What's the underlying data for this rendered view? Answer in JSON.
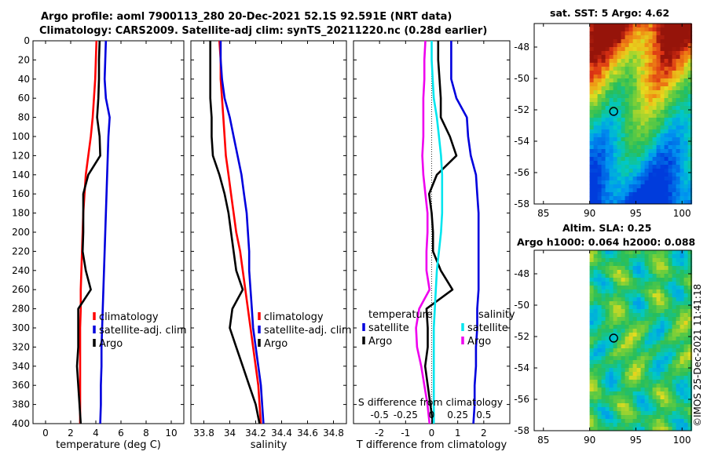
{
  "header": {
    "title_line1": "Argo profile: aoml 7900113_280 20-Dec-2021 52.1S 92.591E (NRT data)",
    "title_line2": "Climatology: CARS2009. Satellite-adj clim: synTS_20211220.nc (0.28d earlier)"
  },
  "colors": {
    "red": "#ff0000",
    "blue": "#0000dd",
    "black": "#000000",
    "cyan": "#00e5ee",
    "magenta": "#ee00ee"
  },
  "chart_data": [
    {
      "name": "temperature_profile",
      "type": "line",
      "xlabel": "temperature (deg C)",
      "xlim": [
        -1,
        11
      ],
      "xticks": [
        "0",
        "2",
        "4",
        "6",
        "8",
        "10"
      ],
      "ylim": [
        0,
        400
      ],
      "yticks": [
        "0",
        "20",
        "40",
        "60",
        "80",
        "100",
        "120",
        "140",
        "160",
        "180",
        "200",
        "220",
        "240",
        "260",
        "280",
        "300",
        "320",
        "340",
        "360",
        "380",
        "400"
      ],
      "legend": [
        "climatology",
        "satellite-adj. clim",
        "Argo"
      ],
      "series": [
        {
          "name": "climatology",
          "color": "red",
          "depth": [
            0,
            20,
            40,
            60,
            80,
            100,
            120,
            140,
            160,
            180,
            200,
            220,
            240,
            260,
            280,
            300,
            320,
            340,
            360,
            380,
            400
          ],
          "values": [
            4.05,
            4.0,
            3.95,
            3.85,
            3.75,
            3.6,
            3.4,
            3.2,
            3.1,
            3.0,
            2.95,
            2.9,
            2.85,
            2.8,
            2.8,
            2.75,
            2.75,
            2.75,
            2.75,
            2.75,
            2.75
          ]
        },
        {
          "name": "satellite-adj. clim",
          "color": "blue",
          "depth": [
            0,
            20,
            40,
            60,
            80,
            100,
            120,
            140,
            160,
            180,
            200,
            220,
            240,
            260,
            280,
            300,
            320,
            340,
            360,
            380,
            400
          ],
          "values": [
            4.8,
            4.75,
            4.7,
            4.8,
            5.1,
            5.0,
            4.95,
            4.9,
            4.85,
            4.8,
            4.75,
            4.7,
            4.65,
            4.6,
            4.55,
            4.5,
            4.45,
            4.45,
            4.4,
            4.4,
            4.35
          ]
        },
        {
          "name": "Argo",
          "color": "black",
          "depth": [
            0,
            20,
            40,
            60,
            80,
            100,
            120,
            140,
            160,
            180,
            200,
            220,
            240,
            260,
            280,
            300,
            320,
            340,
            360,
            380,
            400
          ],
          "values": [
            4.3,
            4.25,
            4.25,
            4.2,
            4.1,
            4.3,
            4.35,
            3.4,
            3.0,
            3.0,
            3.0,
            2.95,
            3.2,
            3.6,
            2.6,
            2.6,
            2.6,
            2.5,
            2.6,
            2.7,
            2.8
          ]
        }
      ]
    },
    {
      "name": "salinity_profile",
      "type": "line",
      "xlabel": "salinity",
      "xlim": [
        33.7,
        34.9
      ],
      "xticks": [
        "33.8",
        "34",
        "34.2",
        "34.4",
        "34.6",
        "34.8"
      ],
      "ylim": [
        0,
        400
      ],
      "legend": [
        "climatology",
        "satellite-adj. clim",
        "Argo"
      ],
      "series": [
        {
          "name": "climatology",
          "color": "red",
          "depth": [
            0,
            20,
            40,
            60,
            80,
            100,
            120,
            140,
            160,
            180,
            200,
            220,
            240,
            260,
            280,
            300,
            320,
            340,
            360,
            380,
            400
          ],
          "values": [
            33.92,
            33.93,
            33.93,
            33.94,
            33.95,
            33.96,
            33.97,
            33.99,
            34.01,
            34.03,
            34.05,
            34.08,
            34.1,
            34.12,
            34.14,
            34.16,
            34.18,
            34.2,
            34.22,
            34.23,
            34.24
          ]
        },
        {
          "name": "satellite-adj. clim",
          "color": "blue",
          "depth": [
            0,
            20,
            40,
            60,
            80,
            100,
            120,
            140,
            160,
            180,
            200,
            220,
            240,
            260,
            280,
            300,
            320,
            340,
            360,
            380,
            400
          ],
          "values": [
            33.93,
            33.93,
            33.94,
            33.96,
            34.0,
            34.03,
            34.06,
            34.09,
            34.11,
            34.13,
            34.14,
            34.15,
            34.15,
            34.16,
            34.17,
            34.18,
            34.2,
            34.22,
            34.24,
            34.25,
            34.26
          ]
        },
        {
          "name": "Argo",
          "color": "black",
          "depth": [
            0,
            20,
            40,
            60,
            80,
            100,
            120,
            140,
            160,
            180,
            200,
            220,
            240,
            260,
            280,
            300,
            320,
            340,
            360,
            380,
            400
          ],
          "values": [
            33.85,
            33.85,
            33.85,
            33.85,
            33.86,
            33.86,
            33.87,
            33.92,
            33.96,
            33.99,
            34.01,
            34.03,
            34.05,
            34.1,
            34.02,
            34.0,
            34.05,
            34.1,
            34.15,
            34.2,
            34.23
          ]
        }
      ]
    },
    {
      "name": "difference_profile",
      "type": "line",
      "xlabel": "T difference from climatology",
      "xlabel_top": "S difference from climatology",
      "xlim": [
        -3,
        3
      ],
      "xticks": [
        "-2",
        "-1",
        "0",
        "1",
        "2"
      ],
      "xticks_s": [
        "-0.5",
        "-0.25",
        "0",
        "0.25",
        "0.5"
      ],
      "ylim": [
        0,
        400
      ],
      "legend": {
        "temperature_header": "temperature",
        "salinity_header": "salinity",
        "temperature": [
          "satellite",
          "Argo"
        ],
        "salinity": [
          "satellite",
          "Argo"
        ]
      },
      "series": [
        {
          "name": "T satellite",
          "color": "blue",
          "depth": [
            0,
            20,
            40,
            60,
            80,
            100,
            120,
            140,
            160,
            180,
            200,
            220,
            240,
            260,
            280,
            300,
            320,
            340,
            360,
            380,
            400
          ],
          "values": [
            0.75,
            0.75,
            0.75,
            0.95,
            1.35,
            1.4,
            1.5,
            1.7,
            1.75,
            1.8,
            1.8,
            1.8,
            1.8,
            1.8,
            1.75,
            1.75,
            1.7,
            1.7,
            1.65,
            1.65,
            1.6
          ]
        },
        {
          "name": "T Argo",
          "color": "black",
          "depth": [
            0,
            20,
            40,
            60,
            80,
            100,
            120,
            140,
            160,
            180,
            200,
            220,
            240,
            260,
            280,
            300,
            320,
            340,
            360,
            380,
            400
          ],
          "values": [
            0.25,
            0.25,
            0.3,
            0.35,
            0.35,
            0.7,
            0.95,
            0.2,
            -0.1,
            0.0,
            0.05,
            0.05,
            0.35,
            0.8,
            -0.2,
            -0.15,
            -0.15,
            -0.25,
            -0.15,
            -0.05,
            0.05
          ]
        },
        {
          "name": "S satellite",
          "color": "cyan",
          "depth": [
            0,
            20,
            40,
            60,
            80,
            100,
            120,
            140,
            160,
            180,
            200,
            220,
            240,
            260,
            280,
            300,
            320,
            340,
            360,
            380,
            400
          ],
          "values": [
            0.0,
            0.0,
            0.01,
            0.02,
            0.05,
            0.07,
            0.09,
            0.1,
            0.1,
            0.1,
            0.09,
            0.07,
            0.05,
            0.04,
            0.03,
            0.02,
            0.02,
            0.02,
            0.02,
            0.02,
            0.02
          ]
        },
        {
          "name": "S Argo",
          "color": "magenta",
          "depth": [
            0,
            20,
            40,
            60,
            80,
            100,
            120,
            140,
            160,
            180,
            200,
            220,
            240,
            260,
            280,
            300,
            320,
            340,
            360,
            380,
            400
          ],
          "values": [
            -0.06,
            -0.07,
            -0.07,
            -0.08,
            -0.08,
            -0.08,
            -0.09,
            -0.08,
            -0.06,
            -0.04,
            -0.04,
            -0.05,
            -0.05,
            -0.02,
            -0.12,
            -0.15,
            -0.14,
            -0.1,
            -0.07,
            -0.04,
            -0.02
          ]
        }
      ]
    }
  ],
  "maps": [
    {
      "name": "sst_map",
      "title": "sat. SST: 5 Argo: 4.62",
      "type": "heatmap",
      "xlim": [
        84,
        101
      ],
      "ylim": [
        -58,
        -46.5
      ],
      "xticks": [
        "85",
        "90",
        "95",
        "100"
      ],
      "yticks": [
        "-48",
        "-50",
        "-52",
        "-54",
        "-56",
        "-58"
      ],
      "marker": {
        "lon": 92.6,
        "lat": -52.1
      }
    },
    {
      "name": "sla_map",
      "title": "Altim. SLA: 0.25",
      "subtitle": "Argo h1000: 0.064 h2000: 0.088",
      "type": "heatmap",
      "xlim": [
        84,
        101
      ],
      "ylim": [
        -58,
        -46.5
      ],
      "xticks": [
        "85",
        "90",
        "95",
        "100"
      ],
      "yticks": [
        "-48",
        "-50",
        "-52",
        "-54",
        "-56",
        "-58"
      ],
      "marker": {
        "lon": 92.6,
        "lat": -52.1
      }
    }
  ],
  "footer": {
    "imos_stamp": "©IMOS 25-Dec-2021 11:41:18"
  }
}
